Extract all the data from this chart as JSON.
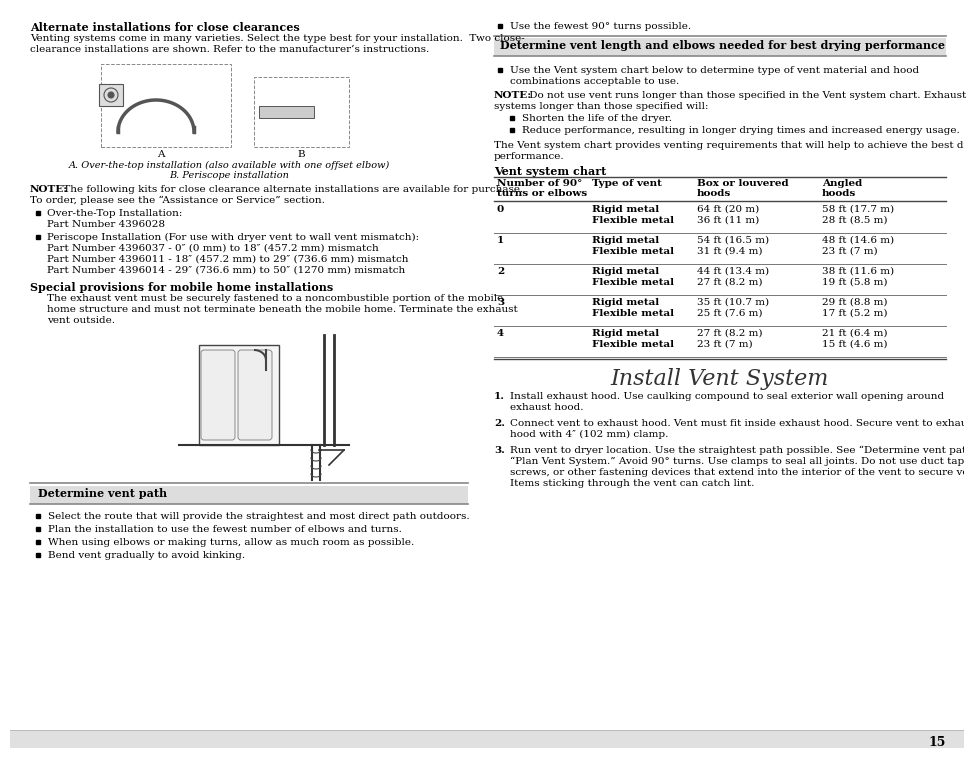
{
  "page_bg": "#ffffff",
  "page_num": "15",
  "left_col": {
    "section1_title": "Alternate installations for close clearances",
    "section1_body1": "Venting systems come in many varieties. Select the type best for your installation.  Two close-",
    "section1_body2": "clearance installations are shown. Refer to the manufacturer’s instructions.",
    "image_caption1": "A. Over-the-top installation (also available with one offset elbow)",
    "image_caption2": "B. Periscope installation",
    "note_bold": "NOTE:",
    "note_text1": " The following kits for close clearance alternate installations are available for purchase.",
    "note_text2": "To order, please see the “Assistance or Service” section.",
    "bullet_ott_title": "Over-the-Top Installation:",
    "bullet_ott_part": "Part Number 4396028",
    "bullet_peri_title": "Periscope Installation (For use with dryer vent to wall vent mismatch):",
    "bullet_peri_parts": [
      "Part Number 4396037 - 0″ (0 mm) to 18″ (457.2 mm) mismatch",
      "Part Number 4396011 - 18″ (457.2 mm) to 29″ (736.6 mm) mismatch",
      "Part Number 4396014 - 29″ (736.6 mm) to 50″ (1270 mm) mismatch"
    ],
    "section2_title": "Special provisions for mobile home installations",
    "section2_body": [
      "The exhaust vent must be securely fastened to a noncombustible portion of the mobile",
      "home structure and must not terminate beneath the mobile home. Terminate the exhaust",
      "vent outside."
    ],
    "section3_title": "Determine vent path",
    "section3_bullets": [
      "Select the route that will provide the straightest and most direct path outdoors.",
      "Plan the installation to use the fewest number of elbows and turns.",
      "When using elbows or making turns, allow as much room as possible.",
      "Bend vent gradually to avoid kinking."
    ]
  },
  "right_col": {
    "bullet_top": "Use the fewest 90° turns possible.",
    "section_title": "Determine vent length and elbows needed for best drying performance",
    "bullet1_lines": [
      "Use the Vent system chart below to determine type of vent material and hood",
      "combinations acceptable to use."
    ],
    "note_bold": "NOTE:",
    "note_text1": " Do not use vent runs longer than those specified in the Vent system chart. Exhaust",
    "note_text2": "systems longer than those specified will:",
    "sub_bullets": [
      "Shorten the life of the dryer.",
      "Reduce performance, resulting in longer drying times and increased energy usage."
    ],
    "para_end1": "The Vent system chart provides venting requirements that will help to achieve the best drying",
    "para_end2": "performance.",
    "chart_title": "Vent system chart",
    "table_headers": [
      "Number of 90°\nturns or elbows",
      "Type of vent",
      "Box or louvered\nhoods",
      "Angled\nhoods"
    ],
    "table_rows": [
      [
        "0",
        "Rigid metal\nFlexible metal",
        "64 ft (20 m)\n36 ft (11 m)",
        "58 ft (17.7 m)\n28 ft (8.5 m)"
      ],
      [
        "1",
        "Rigid metal\nFlexible metal",
        "54 ft (16.5 m)\n31 ft (9.4 m)",
        "48 ft (14.6 m)\n23 ft (7 m)"
      ],
      [
        "2",
        "Rigid metal\nFlexible metal",
        "44 ft (13.4 m)\n27 ft (8.2 m)",
        "38 ft (11.6 m)\n19 ft (5.8 m)"
      ],
      [
        "3",
        "Rigid metal\nFlexible metal",
        "35 ft (10.7 m)\n25 ft (7.6 m)",
        "29 ft (8.8 m)\n17 ft (5.2 m)"
      ],
      [
        "4",
        "Rigid metal\nFlexible metal",
        "27 ft (8.2 m)\n23 ft (7 m)",
        "21 ft (6.4 m)\n15 ft (4.6 m)"
      ]
    ],
    "install_title": "Install Vent System",
    "install_steps": [
      [
        "Install exhaust hood. Use caulking compound to seal exterior wall opening around",
        "exhaust hood."
      ],
      [
        "Connect vent to exhaust hood. Vent must fit inside exhaust hood. Secure vent to exhaust",
        "hood with 4″ (102 mm) clamp."
      ],
      [
        "Run vent to dryer location. Use the straightest path possible. See “Determine vent path” in",
        "“Plan Vent System.” Avoid 90° turns. Use clamps to seal all joints. Do not use duct tape,",
        "screws, or other fastening devices that extend into the interior of the vent to secure vent.",
        "Items sticking through the vent can catch lint."
      ]
    ]
  }
}
